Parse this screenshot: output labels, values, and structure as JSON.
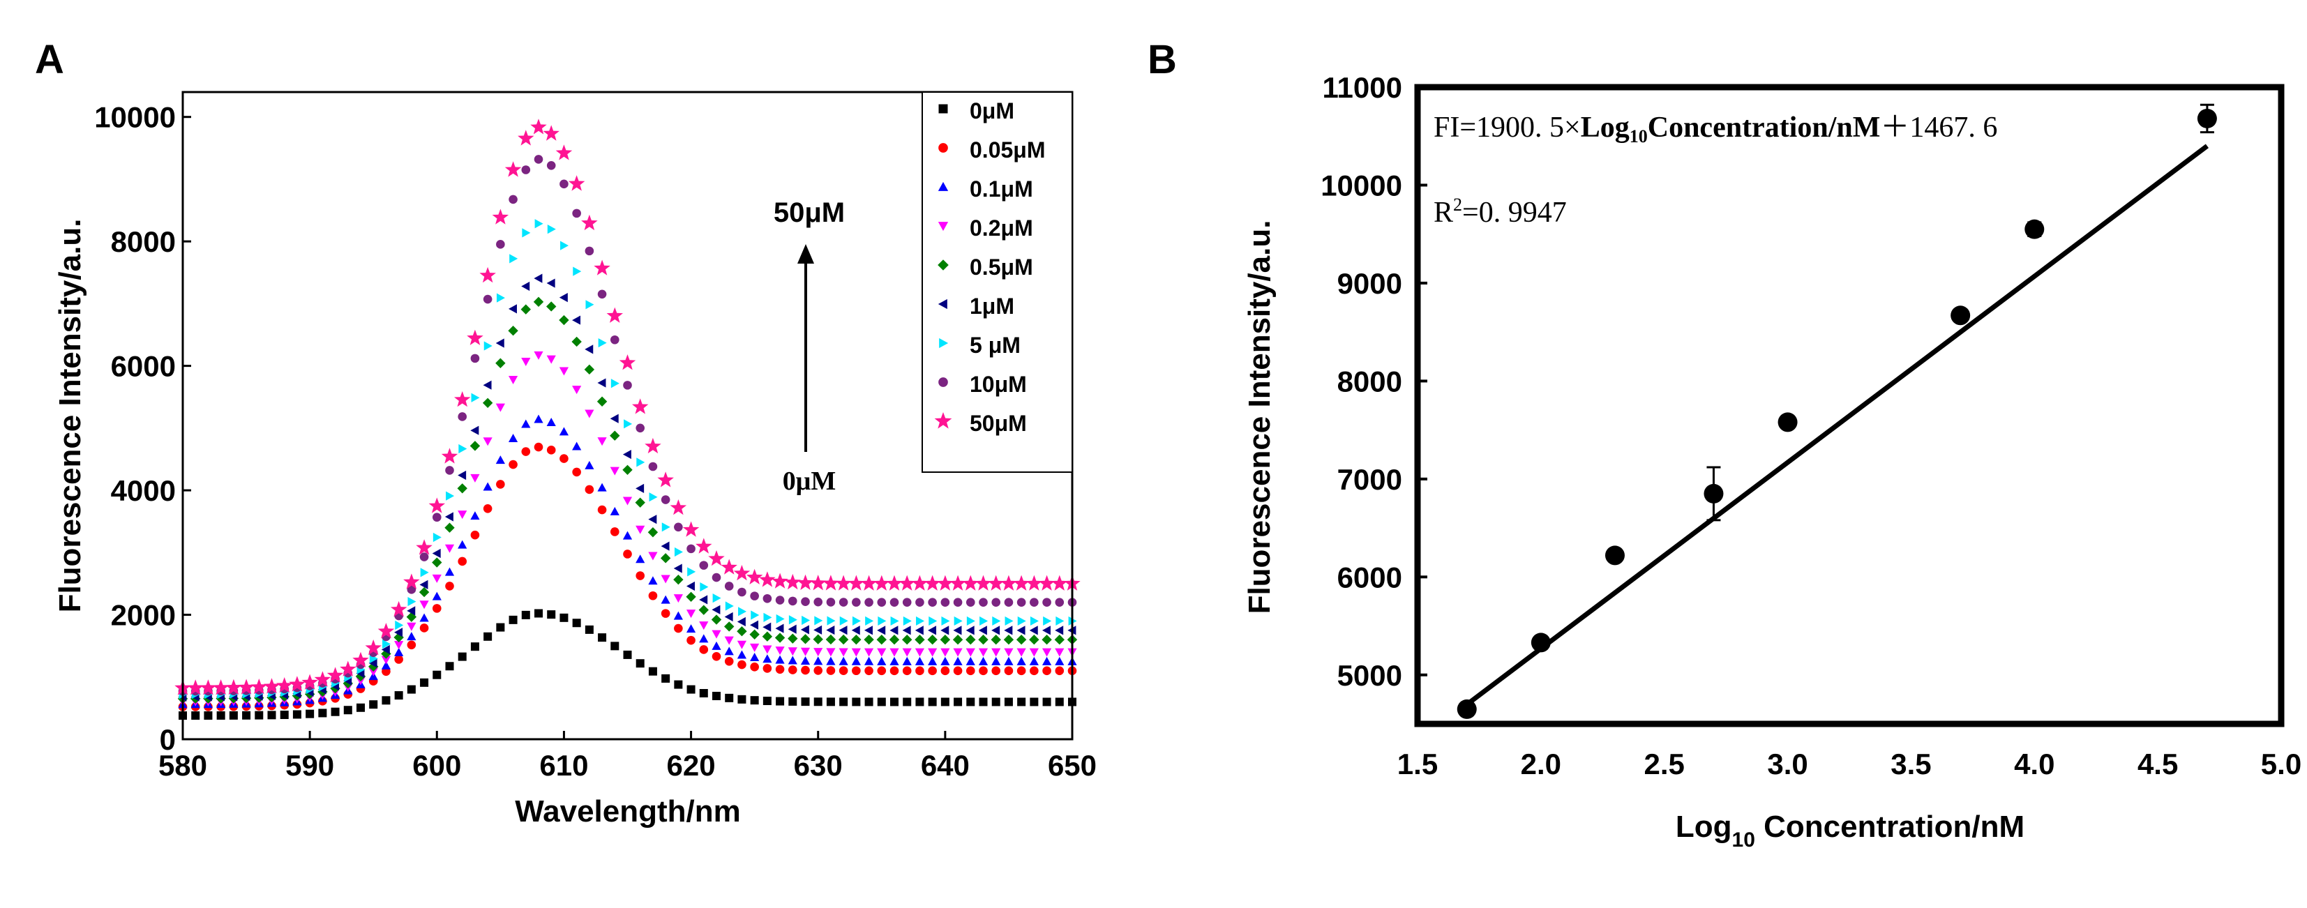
{
  "figure": {
    "panel_a_label": "A",
    "panel_b_label": "B"
  },
  "chart_data": [
    {
      "type": "scatter",
      "panel": "A",
      "title": "",
      "xlabel": "Wavelength/nm",
      "ylabel": "Fluorescence Intensity/a.u.",
      "xlim": [
        580,
        650
      ],
      "ylim": [
        0,
        10400
      ],
      "xticks": [
        580,
        590,
        600,
        610,
        620,
        630,
        640,
        650
      ],
      "yticks": [
        0,
        2000,
        4000,
        6000,
        8000,
        10000
      ],
      "legend_position": "top-right",
      "annotation_top": "50μM",
      "annotation_bottom": "0μM",
      "peak_center": 608,
      "series": [
        {
          "name": "0μM",
          "marker": "square",
          "color": "#000000",
          "base": 380,
          "peak": 1900,
          "plateau": 600,
          "left_amp": 900
        },
        {
          "name": "0.05μM",
          "marker": "circle",
          "color": "#ff0000",
          "base": 520,
          "peak": 4450,
          "plateau": 1100,
          "left_amp": 1700
        },
        {
          "name": "0.1μM",
          "marker": "triangle-up",
          "color": "#0000ff",
          "base": 560,
          "peak": 4900,
          "plateau": 1250,
          "left_amp": 1850
        },
        {
          "name": "0.2μM",
          "marker": "triangle-down",
          "color": "#ff00ff",
          "base": 600,
          "peak": 5950,
          "plateau": 1400,
          "left_amp": 1950
        },
        {
          "name": "0.5μM",
          "marker": "diamond",
          "color": "#008000",
          "base": 650,
          "peak": 6850,
          "plateau": 1600,
          "left_amp": 2050
        },
        {
          "name": "1μM",
          "marker": "triangle-left",
          "color": "#000080",
          "base": 680,
          "peak": 7250,
          "plateau": 1750,
          "left_amp": 2150
        },
        {
          "name": "5 μM",
          "marker": "triangle-right",
          "color": "#00e5ff",
          "base": 720,
          "peak": 8150,
          "plateau": 1900,
          "left_amp": 2250
        },
        {
          "name": "10μM",
          "marker": "circle",
          "color": "#7b2481",
          "base": 770,
          "peak": 9250,
          "plateau": 2200,
          "left_amp": 2400
        },
        {
          "name": "50μM",
          "marker": "star",
          "color": "#ff1493",
          "base": 820,
          "peak": 9850,
          "plateau": 2500,
          "left_amp": 2500
        }
      ]
    },
    {
      "type": "scatter",
      "panel": "B",
      "title": "",
      "xlabel_main": "Log",
      "xlabel_sub": "10",
      "xlabel_rest": " Concentration/nM",
      "ylabel": "Fluorescence Intensity/a.u.",
      "xlim": [
        1.5,
        5.0
      ],
      "ylim": [
        4500,
        11000
      ],
      "xticks": [
        1.5,
        2.0,
        2.5,
        3.0,
        3.5,
        4.0,
        4.5,
        5.0
      ],
      "yticks": [
        5000,
        6000,
        7000,
        8000,
        9000,
        10000,
        11000
      ],
      "points": [
        {
          "x": 1.7,
          "y": 4650,
          "err": 0
        },
        {
          "x": 2.0,
          "y": 5330,
          "err": 0
        },
        {
          "x": 2.3,
          "y": 6220,
          "err": 0
        },
        {
          "x": 2.7,
          "y": 6850,
          "err": 270
        },
        {
          "x": 3.0,
          "y": 7580,
          "err": 0
        },
        {
          "x": 3.7,
          "y": 8670,
          "err": 0
        },
        {
          "x": 4.0,
          "y": 9550,
          "err": 70
        },
        {
          "x": 4.7,
          "y": 10680,
          "err": 140
        }
      ],
      "fit": {
        "slope": 1900.5,
        "intercept": 1467.6,
        "x_start": 1.7,
        "x_end": 4.7
      },
      "equation": {
        "prefix": "FI=1900. 5×",
        "log": "Log",
        "sub": "10",
        "conc": "Concentration/nM",
        "suffix": "＋1467. 6"
      },
      "r2": {
        "r": "R",
        "sup": "2",
        "value": "=0. 9947"
      }
    }
  ]
}
